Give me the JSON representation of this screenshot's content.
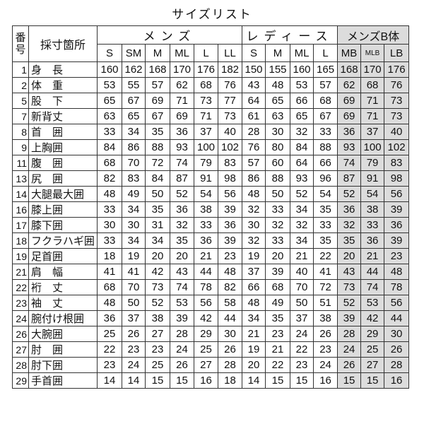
{
  "title": "サイズリスト",
  "header": {
    "number": "番号",
    "measure": "採寸箇所",
    "groups": [
      "メンズ",
      "レディース",
      "メンズB体"
    ],
    "sizes": [
      "S",
      "SM",
      "M",
      "ML",
      "L",
      "LL",
      "S",
      "M",
      "ML",
      "L",
      "MB",
      "MLB",
      "LB"
    ]
  },
  "shade_color": "#dcdcdc",
  "rows": [
    {
      "no": "1",
      "label": "身　長",
      "values": [
        160,
        162,
        168,
        170,
        176,
        182,
        150,
        155,
        160,
        165,
        168,
        170,
        176
      ]
    },
    {
      "no": "2",
      "label": "体　重",
      "values": [
        53,
        55,
        57,
        62,
        68,
        76,
        43,
        48,
        53,
        57,
        62,
        68,
        76
      ]
    },
    {
      "no": "5",
      "label": "股　下",
      "values": [
        65,
        67,
        69,
        71,
        73,
        77,
        64,
        65,
        66,
        68,
        69,
        71,
        73
      ]
    },
    {
      "no": "7",
      "label": "新背丈",
      "values": [
        63,
        65,
        67,
        69,
        71,
        73,
        61,
        63,
        65,
        67,
        69,
        71,
        73
      ]
    },
    {
      "no": "8",
      "label": "首　囲",
      "values": [
        33,
        34,
        35,
        36,
        37,
        40,
        28,
        30,
        32,
        33,
        36,
        37,
        40
      ]
    },
    {
      "no": "9",
      "label": "上胸囲",
      "values": [
        84,
        86,
        88,
        93,
        100,
        102,
        76,
        80,
        84,
        88,
        93,
        100,
        102
      ]
    },
    {
      "no": "11",
      "label": "腹　囲",
      "values": [
        68,
        70,
        72,
        74,
        79,
        83,
        57,
        60,
        64,
        66,
        74,
        79,
        83
      ]
    },
    {
      "no": "13",
      "label": "尻　囲",
      "values": [
        82,
        83,
        84,
        87,
        91,
        98,
        86,
        88,
        93,
        96,
        87,
        91,
        98
      ]
    },
    {
      "no": "14",
      "label": "大腿最大囲",
      "values": [
        48,
        49,
        50,
        52,
        54,
        56,
        48,
        50,
        52,
        54,
        52,
        54,
        56
      ]
    },
    {
      "no": "16",
      "label": "膝上囲",
      "values": [
        33,
        34,
        35,
        36,
        38,
        39,
        32,
        33,
        34,
        35,
        36,
        38,
        39
      ]
    },
    {
      "no": "17",
      "label": "膝下囲",
      "values": [
        30,
        30,
        31,
        32,
        33,
        36,
        30,
        32,
        32,
        33,
        32,
        33,
        36
      ]
    },
    {
      "no": "18",
      "label": "フクラハギ囲",
      "values": [
        33,
        34,
        34,
        35,
        36,
        39,
        32,
        33,
        34,
        35,
        35,
        36,
        39
      ]
    },
    {
      "no": "19",
      "label": "足首囲",
      "values": [
        18,
        19,
        20,
        20,
        21,
        23,
        19,
        20,
        21,
        22,
        20,
        21,
        23
      ]
    },
    {
      "no": "21",
      "label": "肩　幅",
      "values": [
        41,
        41,
        42,
        43,
        44,
        48,
        37,
        39,
        40,
        41,
        43,
        44,
        48
      ]
    },
    {
      "no": "22",
      "label": "裄　丈",
      "values": [
        68,
        70,
        73,
        74,
        78,
        82,
        66,
        68,
        70,
        72,
        73,
        74,
        78
      ]
    },
    {
      "no": "23",
      "label": "袖　丈",
      "values": [
        48,
        50,
        52,
        53,
        56,
        58,
        48,
        49,
        50,
        51,
        52,
        53,
        56
      ]
    },
    {
      "no": "24",
      "label": "腕付け根囲",
      "values": [
        36,
        37,
        38,
        39,
        42,
        44,
        34,
        35,
        37,
        38,
        39,
        42,
        44
      ]
    },
    {
      "no": "26",
      "label": "大腕囲",
      "values": [
        25,
        26,
        27,
        28,
        29,
        30,
        21,
        23,
        24,
        26,
        28,
        29,
        30
      ]
    },
    {
      "no": "27",
      "label": "肘　囲",
      "values": [
        22,
        23,
        23,
        24,
        25,
        26,
        19,
        21,
        22,
        23,
        24,
        25,
        26
      ]
    },
    {
      "no": "28",
      "label": "肘下囲",
      "values": [
        23,
        24,
        25,
        26,
        27,
        28,
        20,
        22,
        23,
        24,
        26,
        27,
        28
      ]
    },
    {
      "no": "29",
      "label": "手首囲",
      "values": [
        14,
        14,
        15,
        15,
        16,
        18,
        14,
        15,
        15,
        16,
        15,
        15,
        16
      ]
    }
  ]
}
